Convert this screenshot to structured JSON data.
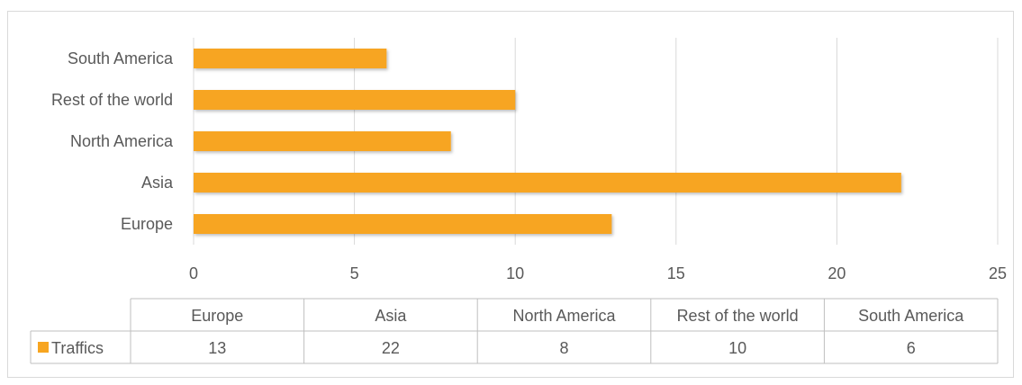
{
  "chart_data": {
    "type": "bar",
    "orientation": "horizontal",
    "categories": [
      "Europe",
      "Asia",
      "North America",
      "Rest of the world",
      "South America"
    ],
    "series": [
      {
        "name": "Traffics",
        "values": [
          13,
          22,
          8,
          10,
          6
        ],
        "color": "#f7a520"
      }
    ],
    "xlim": [
      0,
      25
    ],
    "x_ticks": [
      0,
      5,
      10,
      15,
      20,
      25
    ],
    "grid": true,
    "data_table": true,
    "legend_placement": "data-table"
  }
}
